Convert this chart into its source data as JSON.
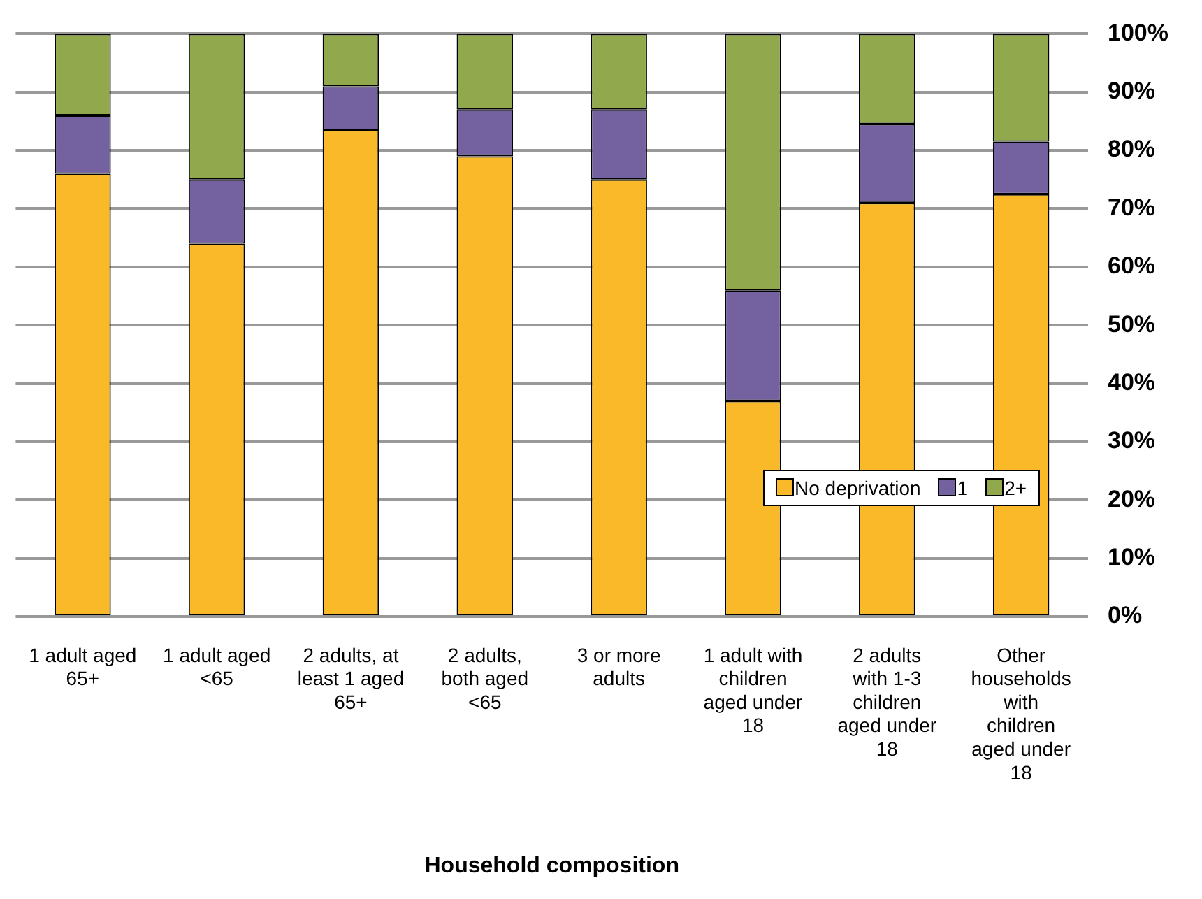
{
  "chart_data": {
    "type": "bar",
    "stacked": true,
    "xlabel": "Household composition",
    "categories": [
      "1 adult aged 65+",
      "1 adult aged <65",
      "2 adults, at least 1 aged 65+",
      "2 adults, both aged <65",
      "3 or more adults",
      "1 adult with children aged under 18",
      "2 adults with 1-3 children aged under 18",
      "Other households with children aged under 18"
    ],
    "series": [
      {
        "name": "No deprivation",
        "color": "#f9b928",
        "values": [
          76,
          64,
          83.5,
          79,
          75,
          37,
          71,
          72.5
        ]
      },
      {
        "name": "1",
        "color": "#7461a0",
        "values": [
          10,
          11,
          7.5,
          8,
          12,
          19,
          13.5,
          9
        ]
      },
      {
        "name": "2+",
        "color": "#92a84c",
        "values": [
          14,
          25,
          9,
          13,
          13,
          44,
          15.5,
          18.5
        ]
      }
    ],
    "ylim": [
      0,
      100
    ],
    "yticks": [
      {
        "value": 0,
        "label": "0%"
      },
      {
        "value": 10,
        "label": "10%"
      },
      {
        "value": 20,
        "label": "20%"
      },
      {
        "value": 30,
        "label": "30%"
      },
      {
        "value": 40,
        "label": "40%"
      },
      {
        "value": 50,
        "label": "50%"
      },
      {
        "value": 60,
        "label": "60%"
      },
      {
        "value": 70,
        "label": "70%"
      },
      {
        "value": 80,
        "label": "80%"
      },
      {
        "value": 90,
        "label": "90%"
      },
      {
        "value": 100,
        "label": "100%"
      }
    ],
    "grid": "y",
    "legend": "bottom right"
  }
}
